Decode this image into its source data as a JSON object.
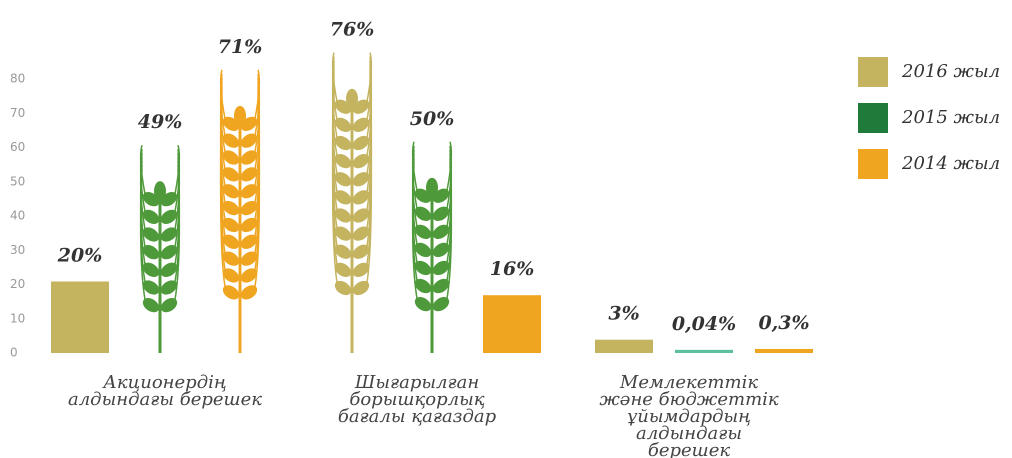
{
  "chart_data": {
    "type": "bar",
    "categories": [
      "Акционердің алдындағы берешек",
      "Шығарылған борышқорлық бағалы қағаздар",
      "Мемлекеттік және бюджеттік ұйымдардың алдындағы берешек"
    ],
    "series": [
      {
        "name": "2016 жыл",
        "color": "#c4b35f",
        "values": [
          20,
          76,
          3
        ],
        "value_labels": [
          "20%",
          "76%",
          "3%"
        ]
      },
      {
        "name": "2015 жыл",
        "color": "#1e7b3a",
        "values": [
          49,
          50,
          0.04
        ],
        "value_labels": [
          "49%",
          "50%",
          "0,04%"
        ]
      },
      {
        "name": "2014 жыл",
        "color": "#f0a520",
        "values": [
          71,
          16,
          0.3
        ],
        "value_labels": [
          "71%",
          "16%",
          "0,3%"
        ]
      }
    ],
    "ylim": [
      0,
      80
    ],
    "yticks": [
      0,
      10,
      20,
      30,
      40,
      50,
      60,
      70,
      80
    ],
    "grid": false,
    "legend": "right"
  }
}
